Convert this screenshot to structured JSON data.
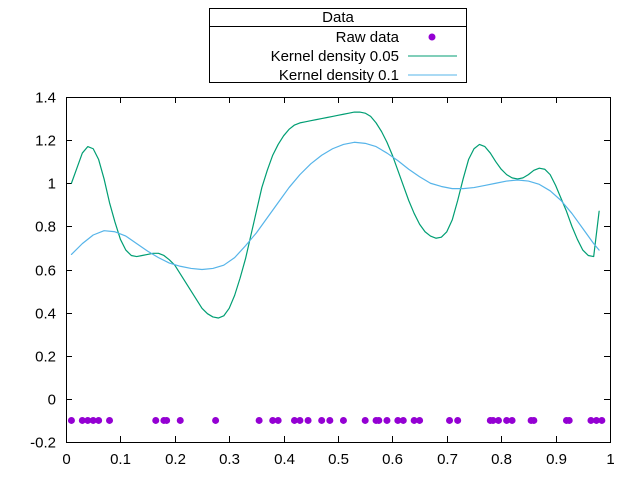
{
  "chart_data": {
    "type": "line",
    "title": "",
    "xlabel": "",
    "ylabel": "",
    "xlim": [
      0,
      1
    ],
    "ylim": [
      -0.2,
      1.4
    ],
    "x_ticks": [
      "0",
      "0.1",
      "0.2",
      "0.3",
      "0.4",
      "0.5",
      "0.6",
      "0.7",
      "0.8",
      "0.9",
      "1"
    ],
    "y_ticks": [
      "-0.2",
      "0",
      "0.2",
      "0.4",
      "0.6",
      "0.8",
      "1",
      "1.2",
      "1.4"
    ],
    "grid": false,
    "legend": {
      "title": "Data",
      "placement": "top-center, outside plot",
      "entries": [
        "Raw data",
        "Kernel density 0.05",
        "Kernel density 0.1"
      ]
    },
    "series": [
      {
        "name": "Raw data",
        "kind": "scatter",
        "color": "#9400d3",
        "x": [
          0.01,
          0.03,
          0.04,
          0.05,
          0.06,
          0.08,
          0.165,
          0.18,
          0.185,
          0.21,
          0.275,
          0.355,
          0.38,
          0.39,
          0.42,
          0.43,
          0.445,
          0.47,
          0.485,
          0.51,
          0.55,
          0.57,
          0.575,
          0.59,
          0.61,
          0.62,
          0.64,
          0.65,
          0.705,
          0.72,
          0.78,
          0.785,
          0.795,
          0.81,
          0.82,
          0.855,
          0.86,
          0.92,
          0.925,
          0.965,
          0.975,
          0.985
        ],
        "y": [
          -0.1,
          -0.1,
          -0.1,
          -0.1,
          -0.1,
          -0.1,
          -0.1,
          -0.1,
          -0.1,
          -0.1,
          -0.1,
          -0.1,
          -0.1,
          -0.1,
          -0.1,
          -0.1,
          -0.1,
          -0.1,
          -0.1,
          -0.1,
          -0.1,
          -0.1,
          -0.1,
          -0.1,
          -0.1,
          -0.1,
          -0.1,
          -0.1,
          -0.1,
          -0.1,
          -0.1,
          -0.1,
          -0.1,
          -0.1,
          -0.1,
          -0.1,
          -0.1,
          -0.1,
          -0.1,
          -0.1,
          -0.1,
          -0.1
        ]
      },
      {
        "name": "Kernel density 0.05",
        "kind": "line",
        "color": "#009e73",
        "x": [
          0.01,
          0.02,
          0.03,
          0.04,
          0.05,
          0.06,
          0.07,
          0.08,
          0.09,
          0.1,
          0.11,
          0.12,
          0.13,
          0.14,
          0.15,
          0.16,
          0.17,
          0.18,
          0.19,
          0.2,
          0.21,
          0.22,
          0.23,
          0.24,
          0.25,
          0.26,
          0.27,
          0.28,
          0.29,
          0.3,
          0.31,
          0.32,
          0.33,
          0.34,
          0.35,
          0.36,
          0.37,
          0.38,
          0.39,
          0.4,
          0.41,
          0.42,
          0.43,
          0.44,
          0.45,
          0.46,
          0.47,
          0.48,
          0.49,
          0.5,
          0.51,
          0.52,
          0.53,
          0.54,
          0.55,
          0.56,
          0.57,
          0.58,
          0.59,
          0.6,
          0.61,
          0.62,
          0.63,
          0.64,
          0.65,
          0.66,
          0.67,
          0.68,
          0.69,
          0.7,
          0.71,
          0.72,
          0.73,
          0.74,
          0.75,
          0.76,
          0.77,
          0.78,
          0.79,
          0.8,
          0.81,
          0.82,
          0.83,
          0.84,
          0.85,
          0.86,
          0.87,
          0.88,
          0.89,
          0.9,
          0.91,
          0.92,
          0.93,
          0.94,
          0.95,
          0.96,
          0.97,
          0.98
        ],
        "y": [
          1.0,
          1.07,
          1.14,
          1.17,
          1.16,
          1.11,
          1.02,
          0.91,
          0.82,
          0.74,
          0.69,
          0.665,
          0.66,
          0.665,
          0.67,
          0.675,
          0.675,
          0.665,
          0.645,
          0.62,
          0.58,
          0.54,
          0.5,
          0.46,
          0.42,
          0.395,
          0.38,
          0.375,
          0.385,
          0.42,
          0.48,
          0.56,
          0.65,
          0.76,
          0.87,
          0.98,
          1.06,
          1.13,
          1.18,
          1.22,
          1.25,
          1.27,
          1.28,
          1.285,
          1.29,
          1.295,
          1.3,
          1.305,
          1.31,
          1.315,
          1.32,
          1.325,
          1.33,
          1.33,
          1.325,
          1.31,
          1.28,
          1.24,
          1.19,
          1.13,
          1.06,
          0.99,
          0.92,
          0.86,
          0.81,
          0.775,
          0.755,
          0.745,
          0.75,
          0.775,
          0.83,
          0.92,
          1.02,
          1.11,
          1.16,
          1.18,
          1.17,
          1.14,
          1.1,
          1.065,
          1.04,
          1.025,
          1.02,
          1.025,
          1.04,
          1.06,
          1.07,
          1.065,
          1.04,
          0.99,
          0.93,
          0.87,
          0.8,
          0.74,
          0.69,
          0.665,
          0.66,
          0.87
        ]
      },
      {
        "name": "Kernel density 0.1",
        "kind": "line",
        "color": "#56b4e9",
        "x": [
          0.01,
          0.03,
          0.05,
          0.07,
          0.09,
          0.11,
          0.13,
          0.15,
          0.17,
          0.19,
          0.21,
          0.23,
          0.25,
          0.27,
          0.29,
          0.31,
          0.33,
          0.35,
          0.37,
          0.39,
          0.41,
          0.43,
          0.45,
          0.47,
          0.49,
          0.51,
          0.53,
          0.55,
          0.57,
          0.59,
          0.61,
          0.63,
          0.65,
          0.67,
          0.69,
          0.71,
          0.73,
          0.75,
          0.77,
          0.79,
          0.81,
          0.83,
          0.85,
          0.87,
          0.89,
          0.91,
          0.93,
          0.95,
          0.97,
          0.98
        ],
        "y": [
          0.67,
          0.72,
          0.76,
          0.78,
          0.775,
          0.755,
          0.72,
          0.685,
          0.655,
          0.63,
          0.615,
          0.605,
          0.6,
          0.605,
          0.62,
          0.655,
          0.71,
          0.77,
          0.84,
          0.91,
          0.98,
          1.04,
          1.09,
          1.13,
          1.16,
          1.18,
          1.19,
          1.185,
          1.17,
          1.14,
          1.105,
          1.065,
          1.03,
          1.0,
          0.985,
          0.975,
          0.975,
          0.98,
          0.99,
          1.0,
          1.01,
          1.015,
          1.01,
          0.995,
          0.965,
          0.92,
          0.86,
          0.79,
          0.72,
          0.69
        ]
      }
    ]
  }
}
